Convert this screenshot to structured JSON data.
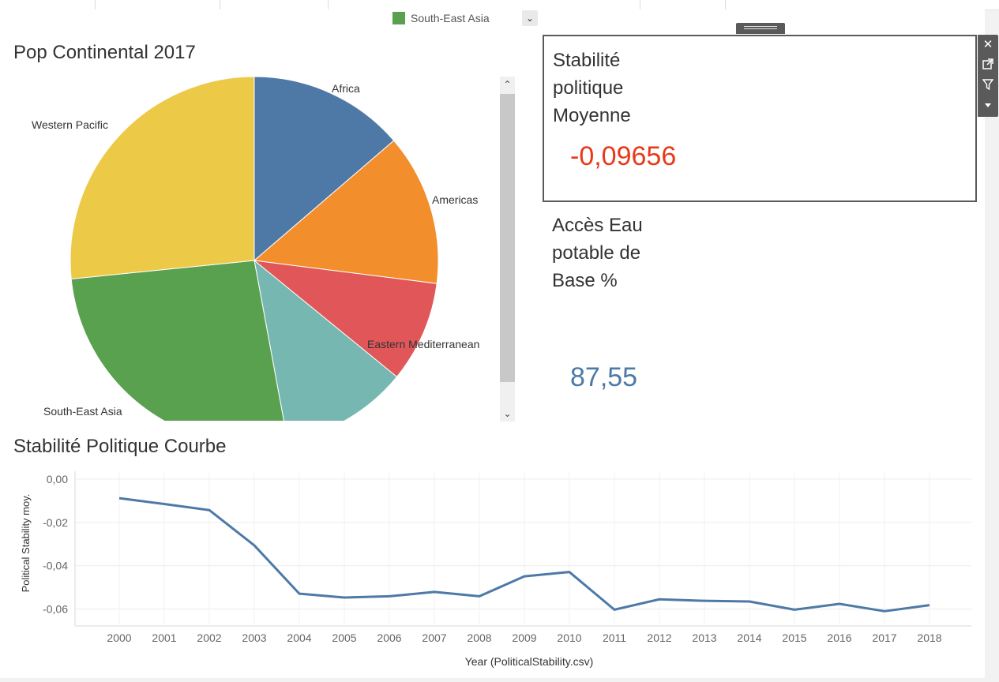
{
  "legend": {
    "item_label": "South-East Asia",
    "item_color": "#59a14f",
    "dropdown_icon": "chevron-down-icon"
  },
  "pie_chart": {
    "title": "Pop Continental 2017",
    "chart_data": {
      "type": "pie",
      "title": "Pop Continental 2017",
      "slices": [
        {
          "label": "Africa",
          "value": 13.7,
          "color": "#4e79a7"
        },
        {
          "label": "Americas",
          "value": 13.3,
          "color": "#f28e2b"
        },
        {
          "label": "Eastern Mediterranean",
          "value": 8.9,
          "color": "#e15759"
        },
        {
          "label": "",
          "value": 11.2,
          "color": "#76b7b2"
        },
        {
          "label": "South-East Asia",
          "value": 26.3,
          "color": "#59a14f"
        },
        {
          "label": "Western Pacific",
          "value": 26.6,
          "color": "#edc948"
        }
      ]
    }
  },
  "kpi_political": {
    "label": "Stabilité politique Moyenne",
    "value": "-0,09656",
    "value_color": "#e8391a"
  },
  "kpi_water": {
    "label": "Accès Eau potable de Base %",
    "value": "87,55",
    "value_color": "#4e79a7"
  },
  "tooltip_toolbar": {
    "icons": [
      "close-icon",
      "popout-icon",
      "filter-icon",
      "more-icon"
    ]
  },
  "line_chart": {
    "title": "Stabilité Politique Courbe",
    "chart_data": {
      "type": "line",
      "title": "Stabilité Politique Courbe",
      "xlabel": "Year (PoliticalStability.csv)",
      "ylabel": "Political Stability moy.",
      "x": [
        "2000",
        "2001",
        "2002",
        "2003",
        "2004",
        "2005",
        "2006",
        "2007",
        "2008",
        "2009",
        "2010",
        "2011",
        "2012",
        "2013",
        "2014",
        "2015",
        "2016",
        "2017",
        "2018"
      ],
      "y": [
        -0.0088,
        -0.0115,
        -0.0143,
        -0.0306,
        -0.0529,
        -0.0547,
        -0.0541,
        -0.0521,
        -0.0541,
        -0.0449,
        -0.0429,
        -0.0603,
        -0.0555,
        -0.0562,
        -0.0565,
        -0.0603,
        -0.0576,
        -0.061,
        -0.0582
      ],
      "ylim": [
        -0.07,
        0.0
      ],
      "yticks": [
        "0,00",
        "-0,02",
        "-0,04",
        "-0,06"
      ],
      "ytick_values": [
        0,
        -0.02,
        -0.04,
        -0.06
      ],
      "line_color": "#4e79a7",
      "grid": true
    }
  }
}
